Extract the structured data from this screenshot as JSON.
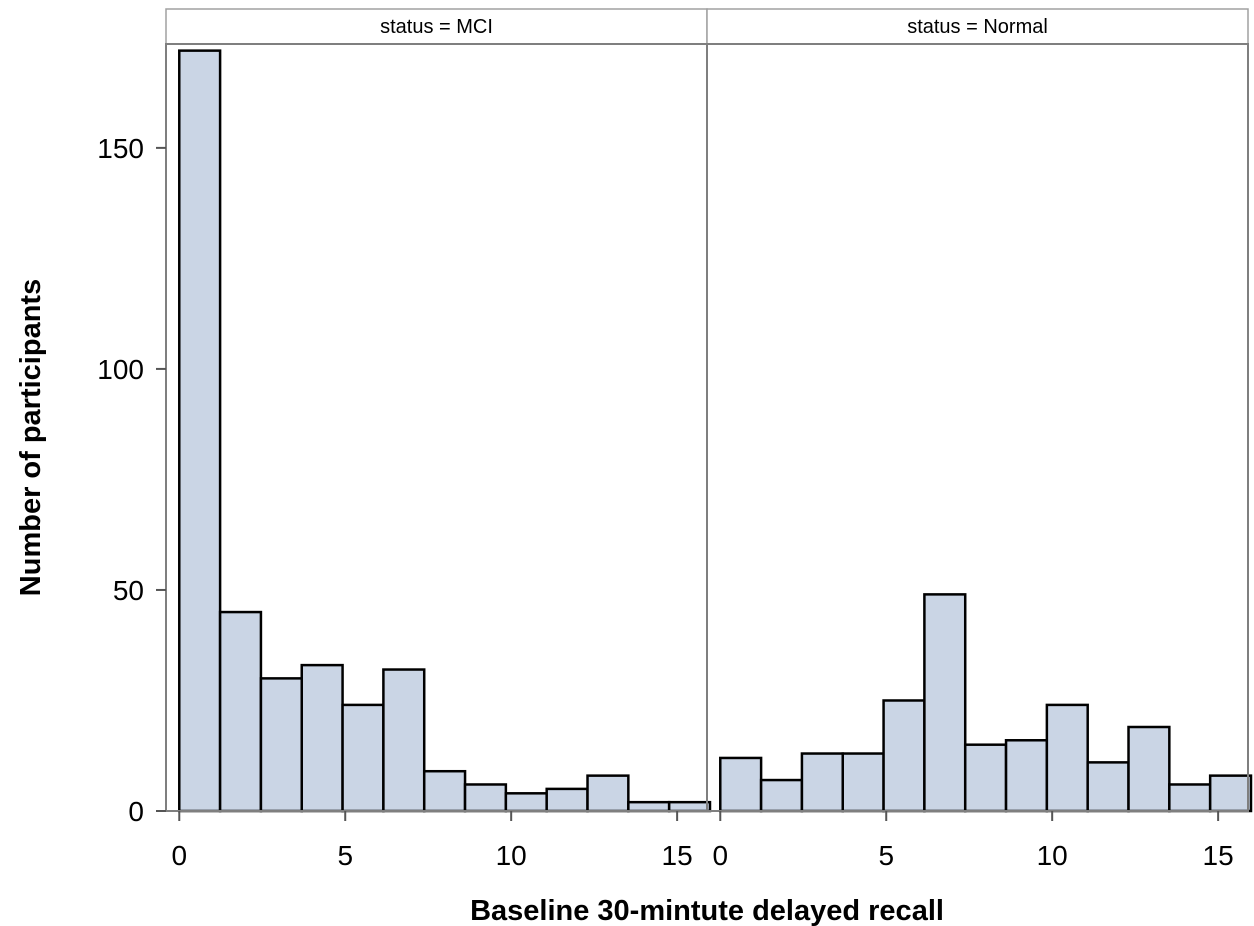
{
  "chart_data": {
    "type": "bar",
    "title": "",
    "xlabel": "Baseline 30-mintute delayed recall",
    "ylabel": "Number of participants",
    "xlim": [
      -0.4,
      15.9
    ],
    "ylim": [
      0,
      173.5
    ],
    "bin_width": 1.23,
    "bin_start": 0.0,
    "x_ticks": [
      0,
      5,
      10,
      15
    ],
    "y_ticks": [
      0,
      50,
      100,
      150
    ],
    "grid": false,
    "bar_color": "#cad5e5",
    "edge_color": "#000000",
    "panels": [
      {
        "strip_label": "status = MCI",
        "values": [
          172,
          45,
          30,
          33,
          24,
          32,
          9,
          6,
          4,
          5,
          8,
          2,
          2
        ]
      },
      {
        "strip_label": "status = Normal",
        "values": [
          12,
          7,
          13,
          13,
          25,
          49,
          15,
          16,
          24,
          11,
          19,
          6,
          8
        ]
      }
    ]
  }
}
